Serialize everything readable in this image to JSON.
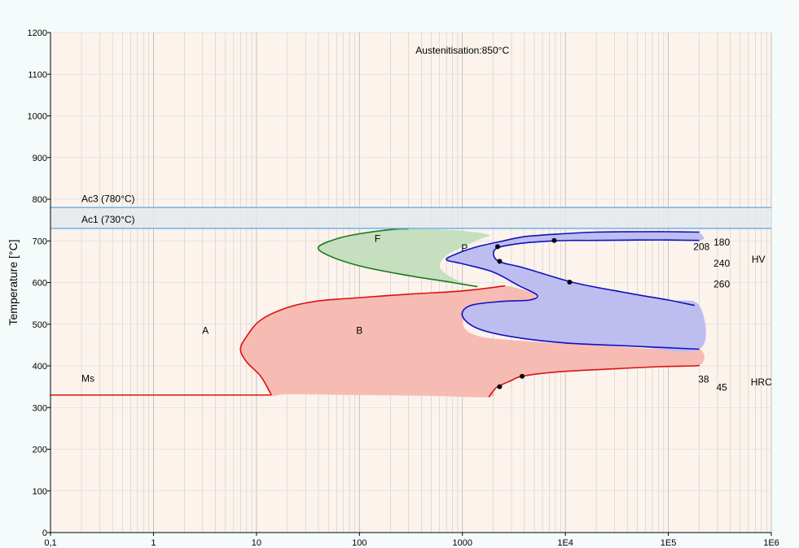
{
  "chart_data": {
    "type": "line",
    "title": "Austenitisation:850°C",
    "xlabel": "",
    "ylabel": "Temperature [°C]",
    "xscale": "log",
    "xlim": [
      0.1,
      1000000
    ],
    "ylim": [
      0,
      1200
    ],
    "xticks": [
      {
        "v": 0.1,
        "label": "0,1"
      },
      {
        "v": 1,
        "label": "1"
      },
      {
        "v": 10,
        "label": "10"
      },
      {
        "v": 100,
        "label": "100"
      },
      {
        "v": 1000,
        "label": "1000"
      },
      {
        "v": 10000,
        "label": "1E4"
      },
      {
        "v": 100000,
        "label": "1E5"
      },
      {
        "v": 1000000,
        "label": "1E6"
      }
    ],
    "yticks": [
      0,
      100,
      200,
      300,
      400,
      500,
      600,
      700,
      800,
      900,
      1000,
      1100,
      1200
    ],
    "grid": true,
    "colors": {
      "plot_bg": "#fbf3ec",
      "grid": "#cccccc",
      "band_fill": "#e3e8ef",
      "band_line": "#6fb3ea",
      "ferrite_line": "#1a7a1a",
      "ferrite_fill": "#c5dfbf",
      "bainite_line": "#dd1111",
      "bainite_fill": "#f6bbb3",
      "pearlite_line": "#1010c0",
      "pearlite_fill": "#bebdf0"
    },
    "reference_lines": [
      {
        "name": "Ac3 (780°C)",
        "y": 780
      },
      {
        "name": "Ac1 (730°C)",
        "y": 730
      }
    ],
    "ms": {
      "label": "Ms",
      "y": 330,
      "x_start": 0.1,
      "x_end": 14
    },
    "regions": [
      {
        "name": "F",
        "label_at": [
          150,
          705
        ],
        "line_pts": [
          [
            300,
            729
          ],
          [
            200,
            727
          ],
          [
            100,
            717
          ],
          [
            60,
            705
          ],
          [
            40,
            685
          ],
          [
            50,
            665
          ],
          [
            100,
            640
          ],
          [
            250,
            620
          ],
          [
            800,
            600
          ],
          [
            1400,
            590
          ]
        ],
        "fill_pts": [
          [
            300,
            729
          ],
          [
            200,
            727
          ],
          [
            100,
            717
          ],
          [
            60,
            705
          ],
          [
            40,
            685
          ],
          [
            50,
            665
          ],
          [
            100,
            640
          ],
          [
            250,
            620
          ],
          [
            800,
            600
          ],
          [
            1400,
            590
          ],
          [
            1000,
            600
          ],
          [
            700,
            620
          ],
          [
            600,
            640
          ],
          [
            700,
            665
          ],
          [
            1000,
            685
          ],
          [
            1500,
            705
          ],
          [
            1800,
            715
          ],
          [
            800,
            726
          ],
          [
            300,
            729
          ]
        ]
      },
      {
        "name": "B",
        "label_at": [
          100,
          485
        ],
        "start_pts": [
          [
            2600,
            592
          ],
          [
            1000,
            580
          ],
          [
            300,
            572
          ],
          [
            80,
            562
          ],
          [
            40,
            556
          ],
          [
            20,
            540
          ],
          [
            11,
            510
          ],
          [
            8,
            470
          ],
          [
            7,
            440
          ],
          [
            8,
            410
          ],
          [
            11,
            375
          ],
          [
            14,
            330
          ]
        ],
        "end_pts": [
          [
            1800,
            325
          ],
          [
            2000,
            340
          ],
          [
            2200,
            350
          ],
          [
            3000,
            365
          ],
          [
            3800,
            375
          ],
          [
            8000,
            385
          ],
          [
            25000,
            392
          ],
          [
            80000,
            398
          ],
          [
            180000,
            400
          ],
          [
            200000,
            402
          ]
        ],
        "fill_pts": [
          [
            2600,
            592
          ],
          [
            1000,
            580
          ],
          [
            300,
            572
          ],
          [
            80,
            562
          ],
          [
            40,
            556
          ],
          [
            20,
            540
          ],
          [
            11,
            510
          ],
          [
            8,
            470
          ],
          [
            7,
            440
          ],
          [
            8,
            410
          ],
          [
            11,
            375
          ],
          [
            14,
            330
          ],
          [
            20,
            332
          ],
          [
            100,
            330
          ],
          [
            500,
            328
          ],
          [
            1800,
            325
          ],
          [
            2000,
            340
          ],
          [
            2200,
            350
          ],
          [
            3000,
            365
          ],
          [
            3800,
            375
          ],
          [
            8000,
            385
          ],
          [
            25000,
            392
          ],
          [
            80000,
            398
          ],
          [
            200000,
            402
          ],
          [
            200000,
            440
          ],
          [
            80000,
            440
          ],
          [
            20000,
            450
          ],
          [
            8000,
            455
          ],
          [
            3000,
            462
          ],
          [
            1500,
            470
          ],
          [
            1050,
            490
          ],
          [
            1100,
            520
          ],
          [
            2000,
            535
          ],
          [
            4000,
            548
          ],
          [
            5200,
            568
          ],
          [
            4500,
            578
          ],
          [
            3000,
            590
          ],
          [
            2600,
            592
          ]
        ]
      },
      {
        "name": "P",
        "label_at": [
          1050,
          683
        ],
        "start_pts": [
          [
            200000,
            721
          ],
          [
            100000,
            722
          ],
          [
            50000,
            722
          ],
          [
            20000,
            721
          ],
          [
            8000,
            716
          ],
          [
            4000,
            710
          ],
          [
            2500,
            700
          ],
          [
            1400,
            686
          ],
          [
            900,
            670
          ],
          [
            700,
            655
          ],
          [
            1000,
            645
          ],
          [
            2000,
            625
          ],
          [
            3500,
            593
          ],
          [
            5300,
            570
          ],
          [
            4500,
            558
          ],
          [
            2500,
            555
          ],
          [
            1200,
            545
          ],
          [
            1000,
            520
          ],
          [
            1400,
            490
          ],
          [
            3000,
            470
          ],
          [
            10000,
            455
          ],
          [
            40000,
            448
          ],
          [
            200000,
            440
          ]
        ],
        "end_pts": [
          [
            200000,
            701
          ],
          [
            100000,
            702
          ],
          [
            50000,
            702
          ],
          [
            20000,
            701
          ],
          [
            12000,
            701
          ],
          [
            7800,
            700
          ],
          [
            4000,
            695
          ],
          [
            2300,
            685
          ],
          [
            2000,
            670
          ],
          [
            2300,
            650
          ],
          [
            4000,
            635
          ],
          [
            12000,
            600
          ],
          [
            40000,
            575
          ],
          [
            100000,
            558
          ],
          [
            180000,
            545
          ]
        ],
        "fill_pts": [
          [
            200000,
            721
          ],
          [
            100000,
            722
          ],
          [
            50000,
            722
          ],
          [
            20000,
            721
          ],
          [
            8000,
            716
          ],
          [
            4000,
            710
          ],
          [
            2500,
            700
          ],
          [
            1400,
            686
          ],
          [
            900,
            670
          ],
          [
            700,
            655
          ],
          [
            1000,
            645
          ],
          [
            2000,
            625
          ],
          [
            3500,
            593
          ],
          [
            5300,
            570
          ],
          [
            4500,
            558
          ],
          [
            2500,
            555
          ],
          [
            1200,
            545
          ],
          [
            1000,
            520
          ],
          [
            1400,
            490
          ],
          [
            3000,
            470
          ],
          [
            10000,
            455
          ],
          [
            40000,
            448
          ],
          [
            200000,
            440
          ],
          [
            200000,
            545
          ],
          [
            100000,
            558
          ],
          [
            40000,
            575
          ],
          [
            12000,
            600
          ],
          [
            4000,
            635
          ],
          [
            2300,
            650
          ],
          [
            2000,
            670
          ],
          [
            2300,
            685
          ],
          [
            4000,
            695
          ],
          [
            7800,
            700
          ],
          [
            12000,
            701
          ],
          [
            50000,
            702
          ],
          [
            200000,
            701
          ],
          [
            200000,
            721
          ]
        ]
      }
    ],
    "points": [
      {
        "x": 2200,
        "y": 686
      },
      {
        "x": 7800,
        "y": 701
      },
      {
        "x": 2300,
        "y": 651
      },
      {
        "x": 11000,
        "y": 601
      },
      {
        "x": 2300,
        "y": 350
      },
      {
        "x": 3800,
        "y": 375
      }
    ],
    "annotations": [
      {
        "text": "A",
        "x": 3.2,
        "y": 485
      },
      {
        "text": "208",
        "x": 210000,
        "y": 686
      },
      {
        "text": "180",
        "x": 330000,
        "y": 697
      },
      {
        "text": "240",
        "x": 330000,
        "y": 646
      },
      {
        "text": "260",
        "x": 330000,
        "y": 596
      },
      {
        "text": "HV",
        "x": 750000,
        "y": 656
      },
      {
        "text": "38",
        "x": 220000,
        "y": 368
      },
      {
        "text": "45",
        "x": 330000,
        "y": 348
      },
      {
        "text": "HRC",
        "x": 800000,
        "y": 361
      }
    ]
  }
}
